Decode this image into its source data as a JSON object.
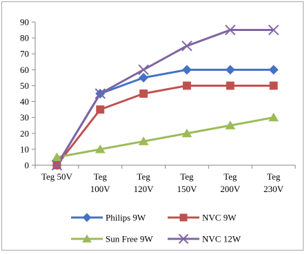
{
  "chart_data": {
    "type": "line",
    "categories": [
      [
        "Teg 50V"
      ],
      [
        "Teg",
        "100V"
      ],
      [
        "Teg",
        "120V"
      ],
      [
        "Teg",
        "150V"
      ],
      [
        "Teg",
        "200V"
      ],
      [
        "Teg",
        "230V"
      ]
    ],
    "ylim": [
      0,
      90
    ],
    "yticks": [
      "0",
      "10",
      "20",
      "30",
      "40",
      "50",
      "60",
      "70",
      "80",
      "90"
    ],
    "grid": false,
    "legend_position": "bottom",
    "series": [
      {
        "name": "Philips 9W",
        "color": "#4472C4",
        "marker": "diamond",
        "values": [
          0,
          45,
          55,
          60,
          60,
          60
        ]
      },
      {
        "name": "NVC 9W",
        "color": "#C0504D",
        "marker": "square",
        "values": [
          0,
          35,
          45,
          50,
          50,
          50
        ]
      },
      {
        "name": "Sun Free 9W",
        "color": "#9BBB59",
        "marker": "triangle",
        "values": [
          5,
          10,
          15,
          20,
          25,
          30
        ]
      },
      {
        "name": "NVC 12W",
        "color": "#8064A2",
        "marker": "x",
        "values": [
          0,
          45,
          60,
          75,
          85,
          85
        ]
      }
    ]
  }
}
